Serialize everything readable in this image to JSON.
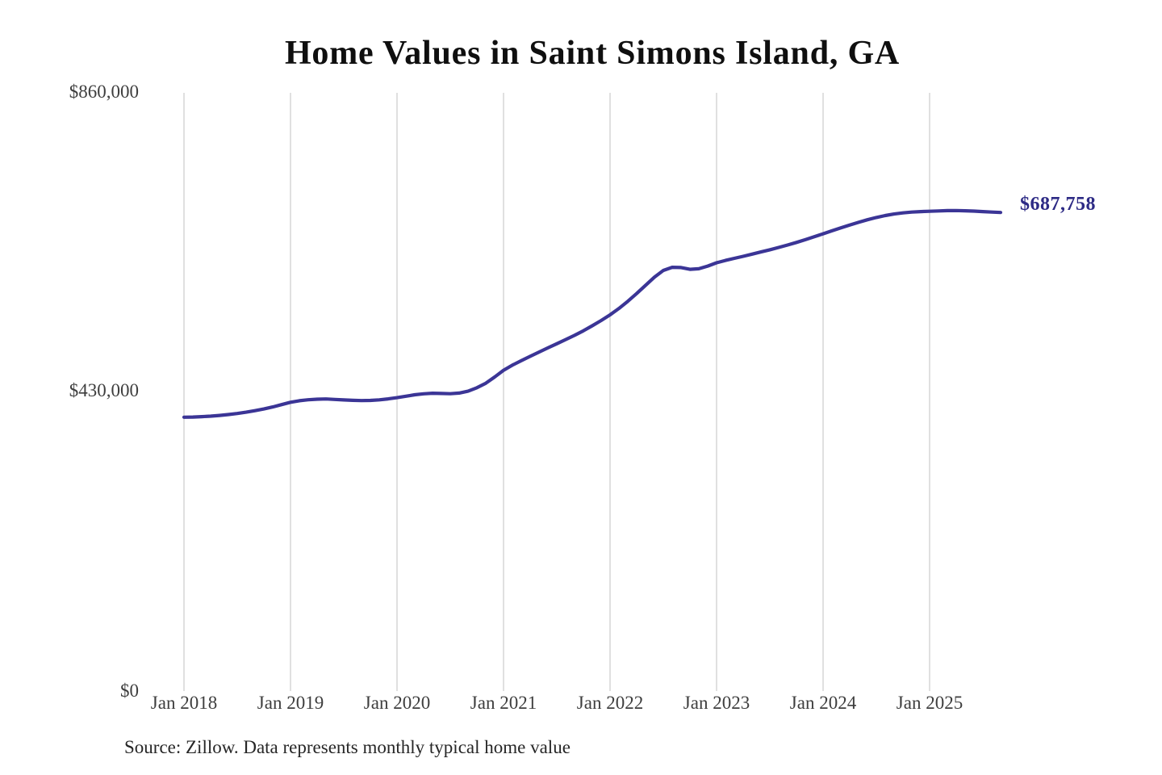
{
  "title": "Home Values in Saint Simons Island, GA",
  "source_note": "Source: Zillow. Data represents monthly typical home value",
  "end_label": "$687,758",
  "colors": {
    "background": "#ffffff",
    "title_text": "#0f0f0f",
    "axis_text": "#3e3e3e",
    "grid": "#cccccc",
    "line": "#3b3596",
    "end_label": "#2d2a85"
  },
  "y_axis": {
    "tick_labels": [
      "$860,000",
      "$430,000",
      "$0"
    ]
  },
  "x_axis": {
    "tick_labels": [
      "Jan 2018",
      "Jan 2019",
      "Jan 2020",
      "Jan 2021",
      "Jan 2022",
      "Jan 2023",
      "Jan 2024",
      "Jan 2025"
    ]
  },
  "chart_data": {
    "type": "line",
    "title": "Home Values in Saint Simons Island, GA",
    "series_name": "Monthly typical home value (USD)",
    "line_color": "#3b3596",
    "ylim": [
      0,
      860000
    ],
    "yticks": [
      0,
      430000,
      860000
    ],
    "ytick_labels": [
      "$0",
      "$430,000",
      "$860,000"
    ],
    "xtick_labels": [
      "Jan 2018",
      "Jan 2019",
      "Jan 2020",
      "Jan 2021",
      "Jan 2022",
      "Jan 2023",
      "Jan 2024",
      "Jan 2025"
    ],
    "grid": "vertical",
    "legend": "none",
    "last_point_label": "$687,758",
    "x": [
      "2018-01",
      "2018-02",
      "2018-03",
      "2018-04",
      "2018-05",
      "2018-06",
      "2018-07",
      "2018-08",
      "2018-09",
      "2018-10",
      "2018-11",
      "2018-12",
      "2019-01",
      "2019-02",
      "2019-03",
      "2019-04",
      "2019-05",
      "2019-06",
      "2019-07",
      "2019-08",
      "2019-09",
      "2019-10",
      "2019-11",
      "2019-12",
      "2020-01",
      "2020-02",
      "2020-03",
      "2020-04",
      "2020-05",
      "2020-06",
      "2020-07",
      "2020-08",
      "2020-09",
      "2020-10",
      "2020-11",
      "2020-12",
      "2021-01",
      "2021-02",
      "2021-03",
      "2021-04",
      "2021-05",
      "2021-06",
      "2021-07",
      "2021-08",
      "2021-09",
      "2021-10",
      "2021-11",
      "2021-12",
      "2022-01",
      "2022-02",
      "2022-03",
      "2022-04",
      "2022-05",
      "2022-06",
      "2022-07",
      "2022-08",
      "2022-09",
      "2022-10",
      "2022-11",
      "2022-12",
      "2023-01",
      "2023-02",
      "2023-03",
      "2023-04",
      "2023-05",
      "2023-06",
      "2023-07",
      "2023-08",
      "2023-09",
      "2023-10",
      "2023-11",
      "2023-12",
      "2024-01",
      "2024-02",
      "2024-03",
      "2024-04",
      "2024-05",
      "2024-06",
      "2024-07",
      "2024-08",
      "2024-09",
      "2024-10",
      "2024-11",
      "2024-12",
      "2025-01",
      "2025-02",
      "2025-03",
      "2025-04",
      "2025-05",
      "2025-06",
      "2025-07",
      "2025-08",
      "2025-09"
    ],
    "values": [
      393000,
      393300,
      393900,
      394600,
      395600,
      396900,
      398400,
      400300,
      402400,
      404900,
      407800,
      411200,
      414600,
      416700,
      418100,
      419000,
      419300,
      418600,
      417900,
      417300,
      417000,
      417200,
      418000,
      419400,
      421200,
      423300,
      425400,
      426800,
      427600,
      427200,
      426900,
      427800,
      430500,
      435500,
      442000,
      450900,
      460600,
      468000,
      474500,
      480700,
      486800,
      492900,
      498800,
      504800,
      510900,
      517500,
      524700,
      532300,
      540400,
      549600,
      559900,
      571100,
      582900,
      594700,
      604300,
      608900,
      608500,
      605900,
      606800,
      610600,
      615400,
      618700,
      621700,
      624700,
      627800,
      630900,
      634100,
      637400,
      640900,
      644600,
      648600,
      652800,
      657100,
      661400,
      665600,
      669700,
      673600,
      677300,
      680600,
      683400,
      685600,
      687200,
      688300,
      689000,
      689500,
      690000,
      690400,
      690500,
      690200,
      689700,
      689100,
      688400,
      687758
    ]
  }
}
